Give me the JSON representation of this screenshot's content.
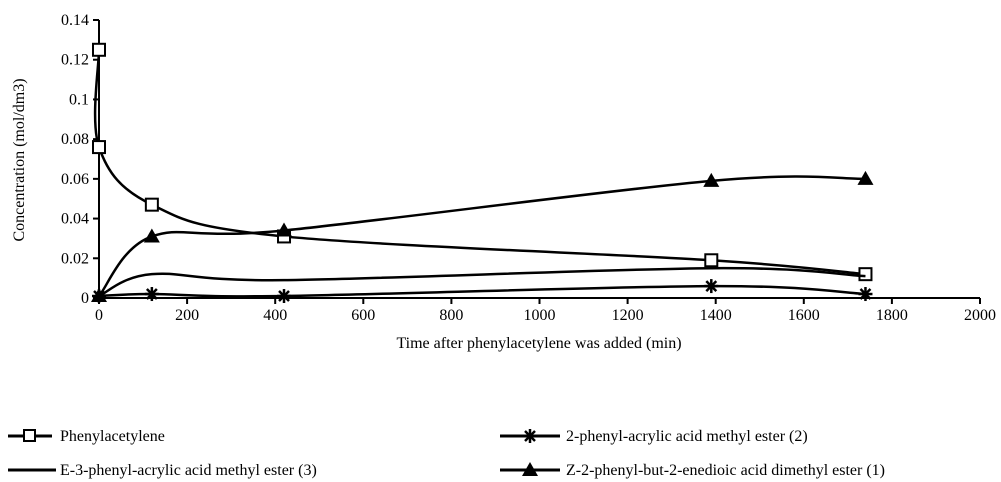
{
  "chart_data": {
    "type": "line",
    "xlabel": "Time after phenylacetylene was added (min)",
    "ylabel": "Concentration (mol/dm3)",
    "xlim": [
      0,
      2000
    ],
    "ylim": [
      0,
      0.14
    ],
    "x_ticks": [
      "0",
      "200",
      "400",
      "600",
      "800",
      "1000",
      "1200",
      "1400",
      "1600",
      "1800",
      "2000"
    ],
    "y_ticks": [
      "0",
      "0.02",
      "0.04",
      "0.06",
      "0.08",
      "0.1",
      "0.12",
      "0.14"
    ],
    "grid": false,
    "legend_position": "bottom",
    "series": [
      {
        "name": "Phenylacetylene",
        "marker": "open-square",
        "color": "#000000",
        "points": [
          [
            0,
            0.125
          ],
          [
            0,
            0.076
          ],
          [
            120,
            0.047
          ],
          [
            420,
            0.031
          ],
          [
            1390,
            0.019
          ],
          [
            1740,
            0.012
          ]
        ]
      },
      {
        "name": "2-phenyl-acrylic acid methyl ester (2)",
        "marker": "asterisk",
        "color": "#000000",
        "points": [
          [
            0,
            0.001
          ],
          [
            120,
            0.002
          ],
          [
            420,
            0.001
          ],
          [
            1390,
            0.006
          ],
          [
            1740,
            0.002
          ]
        ]
      },
      {
        "name": "E-3-phenyl-acrylic acid methyl ester (3)",
        "marker": "none",
        "color": "#000000",
        "points": [
          [
            0,
            0.001
          ],
          [
            120,
            0.012
          ],
          [
            420,
            0.009
          ],
          [
            1390,
            0.015
          ],
          [
            1740,
            0.011
          ]
        ]
      },
      {
        "name": "Z-2-phenyl-but-2-enedioic acid dimethyl ester (1)",
        "marker": "filled-triangle",
        "color": "#000000",
        "points": [
          [
            0,
            0.001
          ],
          [
            120,
            0.031
          ],
          [
            420,
            0.034
          ],
          [
            1390,
            0.059
          ],
          [
            1740,
            0.06
          ]
        ]
      }
    ]
  }
}
